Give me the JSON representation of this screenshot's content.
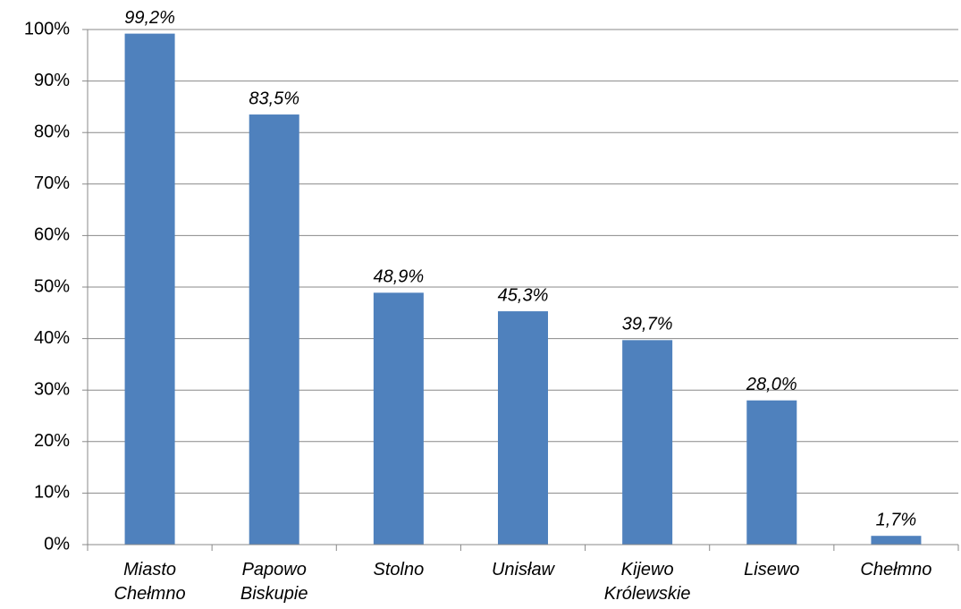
{
  "chart_data": {
    "type": "bar",
    "categories": [
      "Miasto Chełmno",
      "Papowo Biskupie",
      "Stolno",
      "Unisław",
      "Kijewo Królewskie",
      "Lisewo",
      "Chełmno"
    ],
    "values": [
      99.2,
      83.5,
      48.9,
      45.3,
      39.7,
      28.0,
      1.7
    ],
    "value_labels": [
      "99,2%",
      "83,5%",
      "48,9%",
      "45,3%",
      "39,7%",
      "28,0%",
      "1,7%"
    ],
    "color": "#4f81bd",
    "ylim": [
      0,
      100
    ],
    "yticks": [
      {
        "value": 0,
        "label": "0%"
      },
      {
        "value": 10,
        "label": "10%"
      },
      {
        "value": 20,
        "label": "20%"
      },
      {
        "value": 30,
        "label": "30%"
      },
      {
        "value": 40,
        "label": "40%"
      },
      {
        "value": 50,
        "label": "50%"
      },
      {
        "value": 60,
        "label": "60%"
      },
      {
        "value": 70,
        "label": "70%"
      },
      {
        "value": 80,
        "label": "80%"
      },
      {
        "value": 90,
        "label": "90%"
      },
      {
        "value": 100,
        "label": "100%"
      }
    ],
    "grid": true
  }
}
